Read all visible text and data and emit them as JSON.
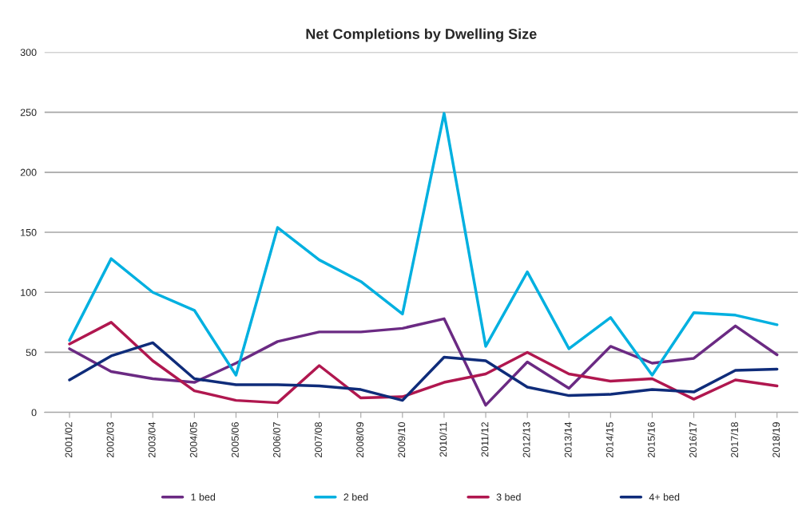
{
  "chart_data": {
    "type": "line",
    "title": "Net Completions by Dwelling Size",
    "categories": [
      "2001/02",
      "2002/03",
      "2003/04",
      "2004/05",
      "2005/06",
      "2006/07",
      "2007/08",
      "2008/09",
      "2009/10",
      "2010/11",
      "2011/12",
      "2012/13",
      "2013/14",
      "2014/15",
      "2015/16",
      "2016/17",
      "2017/18",
      "2018/19"
    ],
    "series": [
      {
        "name": "1 bed",
        "color": "#6b2a83",
        "values": [
          53,
          34,
          28,
          25,
          41,
          59,
          67,
          67,
          70,
          78,
          6,
          42,
          20,
          55,
          41,
          45,
          72,
          48
        ]
      },
      {
        "name": "2 bed",
        "color": "#00b0e0",
        "values": [
          60,
          128,
          100,
          85,
          31,
          154,
          127,
          109,
          82,
          249,
          55,
          117,
          53,
          79,
          31,
          83,
          81,
          73
        ]
      },
      {
        "name": "3 bed",
        "color": "#b0174f",
        "values": [
          57,
          75,
          43,
          18,
          10,
          8,
          39,
          12,
          13,
          25,
          32,
          50,
          32,
          26,
          28,
          11,
          27,
          22
        ]
      },
      {
        "name": "4+ bed",
        "color": "#0f2c7a",
        "values": [
          27,
          47,
          58,
          28,
          23,
          23,
          22,
          19,
          10,
          46,
          43,
          21,
          14,
          15,
          19,
          17,
          35,
          36
        ]
      }
    ],
    "ylim": [
      0,
      300
    ],
    "yticks": [
      0,
      50,
      100,
      150,
      200,
      250,
      300
    ],
    "grid": "y",
    "legend": "bottom",
    "marker": "none",
    "line_style": "solid"
  }
}
